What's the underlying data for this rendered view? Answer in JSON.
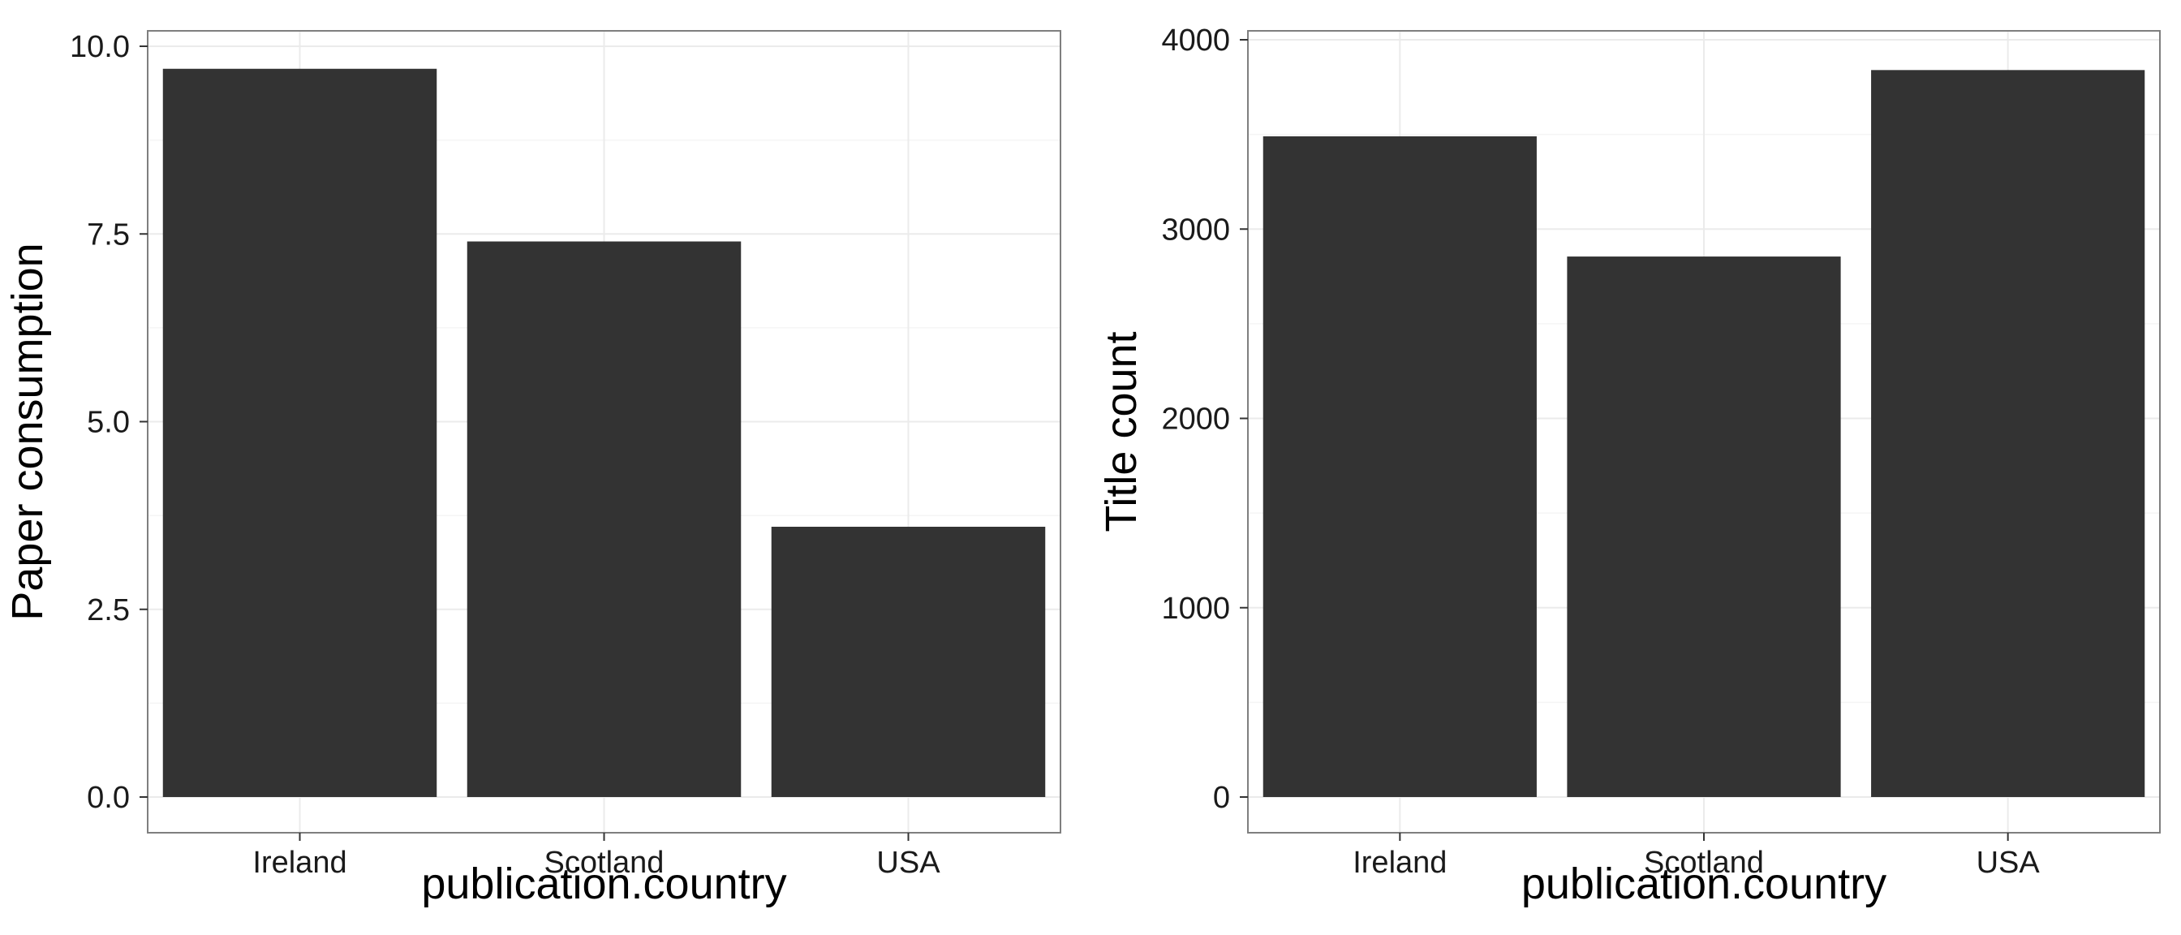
{
  "chart_data": [
    {
      "type": "bar",
      "categories": [
        "Ireland",
        "Scotland",
        "USA"
      ],
      "values": [
        9.7,
        7.4,
        3.6
      ],
      "xlabel": "publication.country",
      "ylabel": "Paper consumption",
      "ylim": [
        0,
        10.0
      ],
      "yticks": [
        "0.0",
        "2.5",
        "5.0",
        "7.5",
        "10.0"
      ],
      "ytick_values": [
        0,
        2.5,
        5.0,
        7.5,
        10.0
      ],
      "grid": true,
      "bar_color": "#333333"
    },
    {
      "type": "bar",
      "categories": [
        "Ireland",
        "Scotland",
        "USA"
      ],
      "values": [
        3490,
        2855,
        3840
      ],
      "xlabel": "publication.country",
      "ylabel": "Title count",
      "ylim": [
        0,
        4000
      ],
      "yticks": [
        "0",
        "1000",
        "2000",
        "3000",
        "4000"
      ],
      "ytick_values": [
        0,
        1000,
        2000,
        3000,
        4000
      ],
      "grid": true,
      "bar_color": "#333333"
    }
  ]
}
